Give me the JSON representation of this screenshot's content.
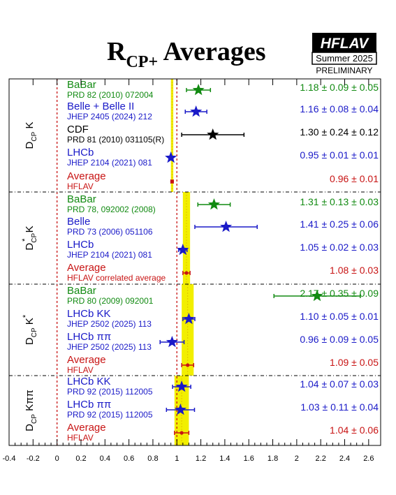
{
  "chart_data": {
    "type": "forest",
    "title": {
      "main": "R",
      "sub": "CP+",
      "rest": " Averages"
    },
    "badge": {
      "logo": "HFLAV",
      "season": "Summer 2025",
      "status": "PRELIMINARY"
    },
    "xlim": [
      -0.4,
      2.7
    ],
    "xticks": [
      "-0.4",
      "-0.2",
      "0",
      "0.2",
      "0.4",
      "0.6",
      "0.8",
      "1",
      "1.2",
      "1.4",
      "1.6",
      "1.8",
      "2",
      "2.2",
      "2.4",
      "2.6"
    ],
    "xtick_values": [
      -0.4,
      -0.2,
      0,
      0.2,
      0.4,
      0.6,
      0.8,
      1,
      1.2,
      1.4,
      1.6,
      1.8,
      2,
      2.2,
      2.4,
      2.6
    ],
    "reference_lines": [
      0,
      1
    ],
    "colors": {
      "green": "#118a11",
      "blue": "#1a1ac8",
      "black": "#000000",
      "red": "#c81414",
      "band": "#f2ef00"
    },
    "groups": [
      {
        "label": {
          "main": "D",
          "sub": "CP",
          "sup": "",
          "rest": " K",
          "sub2": ""
        },
        "band": [
          0.95,
          0.97
        ],
        "measurements": [
          {
            "name": "BaBar",
            "ref": "PRD 82 (2010) 072004",
            "value": 1.18,
            "err": 0.1,
            "text": "1.18 ± 0.09 ± 0.05",
            "color": "green",
            "marker": "star"
          },
          {
            "name": "Belle + Belle II",
            "ref": "JHEP 2405 (2024) 212",
            "value": 1.16,
            "err": 0.09,
            "text": "1.16 ± 0.08 ± 0.04",
            "color": "blue",
            "marker": "star"
          },
          {
            "name": "CDF",
            "ref": "PRD 81 (2010) 031105(R)",
            "value": 1.3,
            "err": 0.26,
            "text": "1.30 ± 0.24 ± 0.12",
            "color": "black",
            "marker": "star"
          },
          {
            "name": "LHCb",
            "ref": "JHEP 2104 (2021) 081",
            "value": 0.95,
            "err": 0.014,
            "text": "0.95 ± 0.01 ± 0.01",
            "color": "blue",
            "marker": "star"
          },
          {
            "name": "Average",
            "ref": "HFLAV",
            "value": 0.96,
            "err": 0.01,
            "text": "0.96 ± 0.01",
            "color": "red",
            "marker": "avg"
          }
        ]
      },
      {
        "label": {
          "main": "D",
          "sub": "CP",
          "sup": "*",
          "rest": " K",
          "sub2": ""
        },
        "band": [
          1.05,
          1.11
        ],
        "measurements": [
          {
            "name": "BaBar",
            "ref": "PRD 78, 092002 (2008)",
            "value": 1.31,
            "err": 0.135,
            "text": "1.31 ± 0.13 ± 0.03",
            "color": "green",
            "marker": "star"
          },
          {
            "name": "Belle",
            "ref": "PRD 73 (2006) 051106",
            "value": 1.41,
            "err": 0.26,
            "text": "1.41 ± 0.25 ± 0.06",
            "color": "blue",
            "marker": "star"
          },
          {
            "name": "LHCb",
            "ref": "JHEP 2104 (2021) 081",
            "value": 1.05,
            "err": 0.035,
            "text": "1.05 ± 0.02 ± 0.03",
            "color": "blue",
            "marker": "star"
          },
          {
            "name": "Average",
            "ref": "HFLAV correlated average",
            "value": 1.08,
            "err": 0.03,
            "text": "1.08 ± 0.03",
            "color": "red",
            "marker": "avg"
          }
        ]
      },
      {
        "label": {
          "main": "D",
          "sub": "CP",
          "sup": "",
          "rest": " K",
          "sub2": "*"
        },
        "band": [
          1.04,
          1.14
        ],
        "measurements": [
          {
            "name": "BaBar",
            "ref": "PRD 80 (2009) 092001",
            "value": 2.17,
            "err": 0.36,
            "text": "2.17 ± 0.35 ± 0.09",
            "color": "green",
            "marker": "star"
          },
          {
            "name": "LHCb KK",
            "ref": "JHEP 2502 (2025) 113",
            "value": 1.1,
            "err": 0.05,
            "text": "1.10 ± 0.05 ± 0.01",
            "color": "blue",
            "marker": "star"
          },
          {
            "name": "LHCb ππ",
            "ref": "JHEP 2502 (2025) 113",
            "value": 0.96,
            "err": 0.1,
            "text": "0.96 ± 0.09 ± 0.05",
            "color": "blue",
            "marker": "star"
          },
          {
            "name": "Average",
            "ref": "HFLAV",
            "value": 1.09,
            "err": 0.05,
            "text": "1.09 ± 0.05",
            "color": "red",
            "marker": "avg"
          }
        ]
      },
      {
        "label": {
          "main": "D",
          "sub": "CP",
          "sup": "",
          "rest": " Kππ",
          "sub2": ""
        },
        "band": [
          0.98,
          1.1
        ],
        "measurements": [
          {
            "name": "LHCb KK",
            "ref": "PRD 92 (2015) 112005",
            "value": 1.04,
            "err": 0.076,
            "text": "1.04 ± 0.07 ± 0.03",
            "color": "blue",
            "marker": "star"
          },
          {
            "name": "LHCb ππ",
            "ref": "PRD 92 (2015) 112005",
            "value": 1.03,
            "err": 0.117,
            "text": "1.03 ± 0.11 ± 0.04",
            "color": "blue",
            "marker": "star"
          },
          {
            "name": "Average",
            "ref": "HFLAV",
            "value": 1.04,
            "err": 0.06,
            "text": "1.04 ± 0.06",
            "color": "red",
            "marker": "avg"
          }
        ]
      }
    ]
  }
}
